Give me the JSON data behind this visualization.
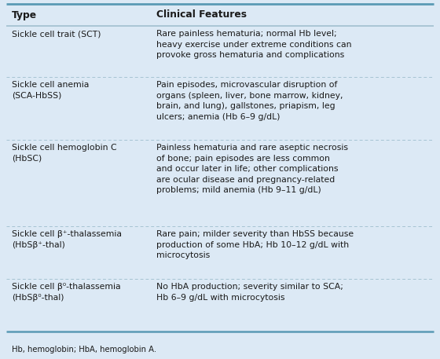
{
  "bg_color": "#dce9f5",
  "border_color_thick": "#5a9ab5",
  "border_color_thin": "#a0bfcf",
  "text_color": "#1a1a1a",
  "font_size": 7.8,
  "header_font_size": 8.8,
  "footer_font_size": 7.2,
  "header": [
    "Type",
    "Clinical Features"
  ],
  "rows": [
    {
      "type": "Sickle cell trait (SCT)",
      "features": "Rare painless hematuria; normal Hb level;\nheavy exercise under extreme conditions can\nprovoke gross hematuria and complications"
    },
    {
      "type": "Sickle cell anemia\n(SCA-HbSS)",
      "features": "Pain episodes, microvascular disruption of\norgans (spleen, liver, bone marrow, kidney,\nbrain, and lung), gallstones, priapism, leg\nulcers; anemia (Hb 6–9 g/dL)"
    },
    {
      "type": "Sickle cell hemoglobin C\n(HbSC)",
      "features": "Painless hematuria and rare aseptic necrosis\nof bone; pain episodes are less common\nand occur later in life; other complications\nare ocular disease and pregnancy-related\nproblems; mild anemia (Hb 9–11 g/dL)"
    },
    {
      "type": "Sickle cell β⁺-thalassemia\n(HbSβ⁺-thal)",
      "features": "Rare pain; milder severity than HbSS because\nproduction of some HbA; Hb 10–12 g/dL with\nmicrocytosis"
    },
    {
      "type": "Sickle cell β⁰-thalassemia\n(HbSβ⁰-thal)",
      "features": "No HbA production; severity similar to SCA;\nHb 6–9 g/dL with microcytosis"
    }
  ],
  "footer": "Hb, hemoglobin; HbA, hemoglobin A."
}
